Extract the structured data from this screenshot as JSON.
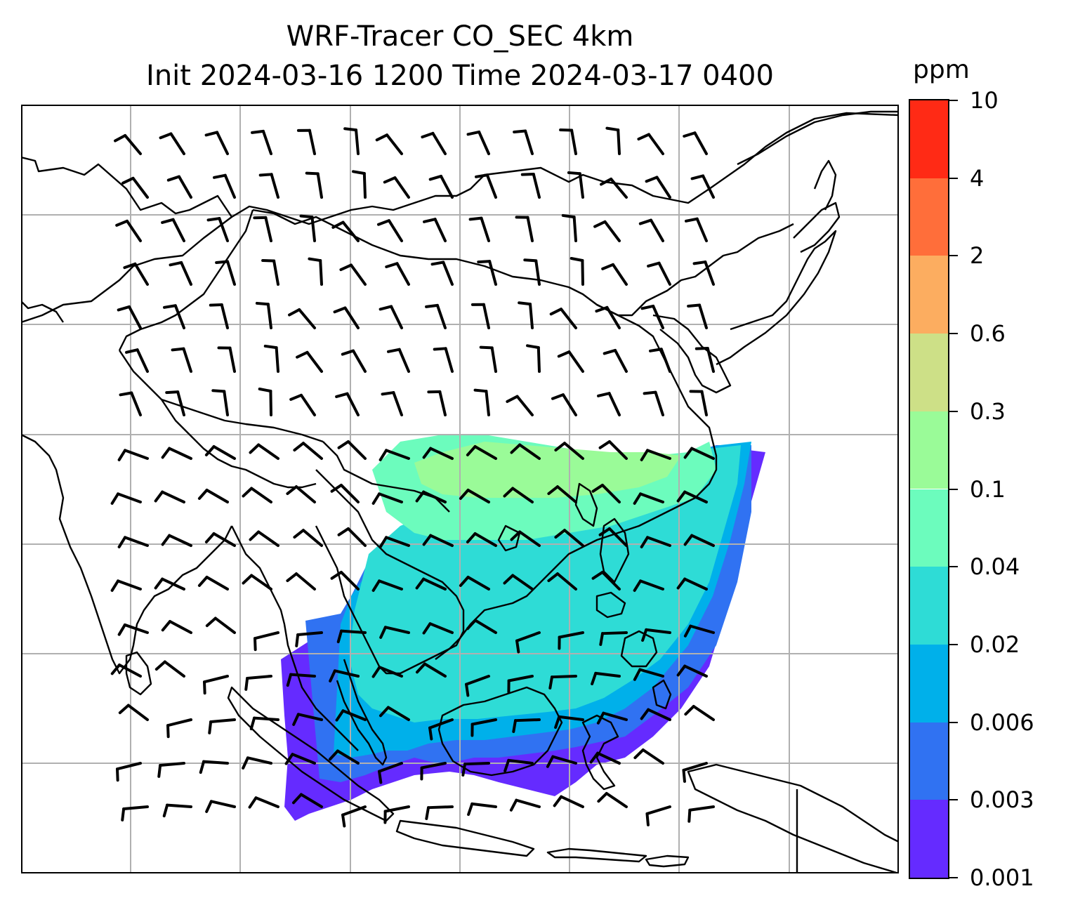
{
  "title": {
    "line1": "WRF-Tracer CO_SEC 4km",
    "line2": "Init 2024-03-16 1200 Time 2024-03-17 0400"
  },
  "colorbar": {
    "unit": "ppm",
    "levels": [
      "0.001",
      "0.003",
      "0.006",
      "0.02",
      "0.04",
      "0.1",
      "0.3",
      "0.6",
      "2",
      "4",
      "10"
    ],
    "colors": [
      "#652bff",
      "#3072f2",
      "#00b0ea",
      "#2edcd6",
      "#6cfcbd",
      "#9afb98",
      "#cde087",
      "#fcad60",
      "#ff6e3a",
      "#ff2a15"
    ]
  },
  "map": {
    "gridlines": true,
    "wind_barbs": true,
    "tracer_field_colors": [
      "#652bff",
      "#3072f2",
      "#00b0ea",
      "#2edcd6",
      "#6cfcbd",
      "#9afb98"
    ]
  }
}
